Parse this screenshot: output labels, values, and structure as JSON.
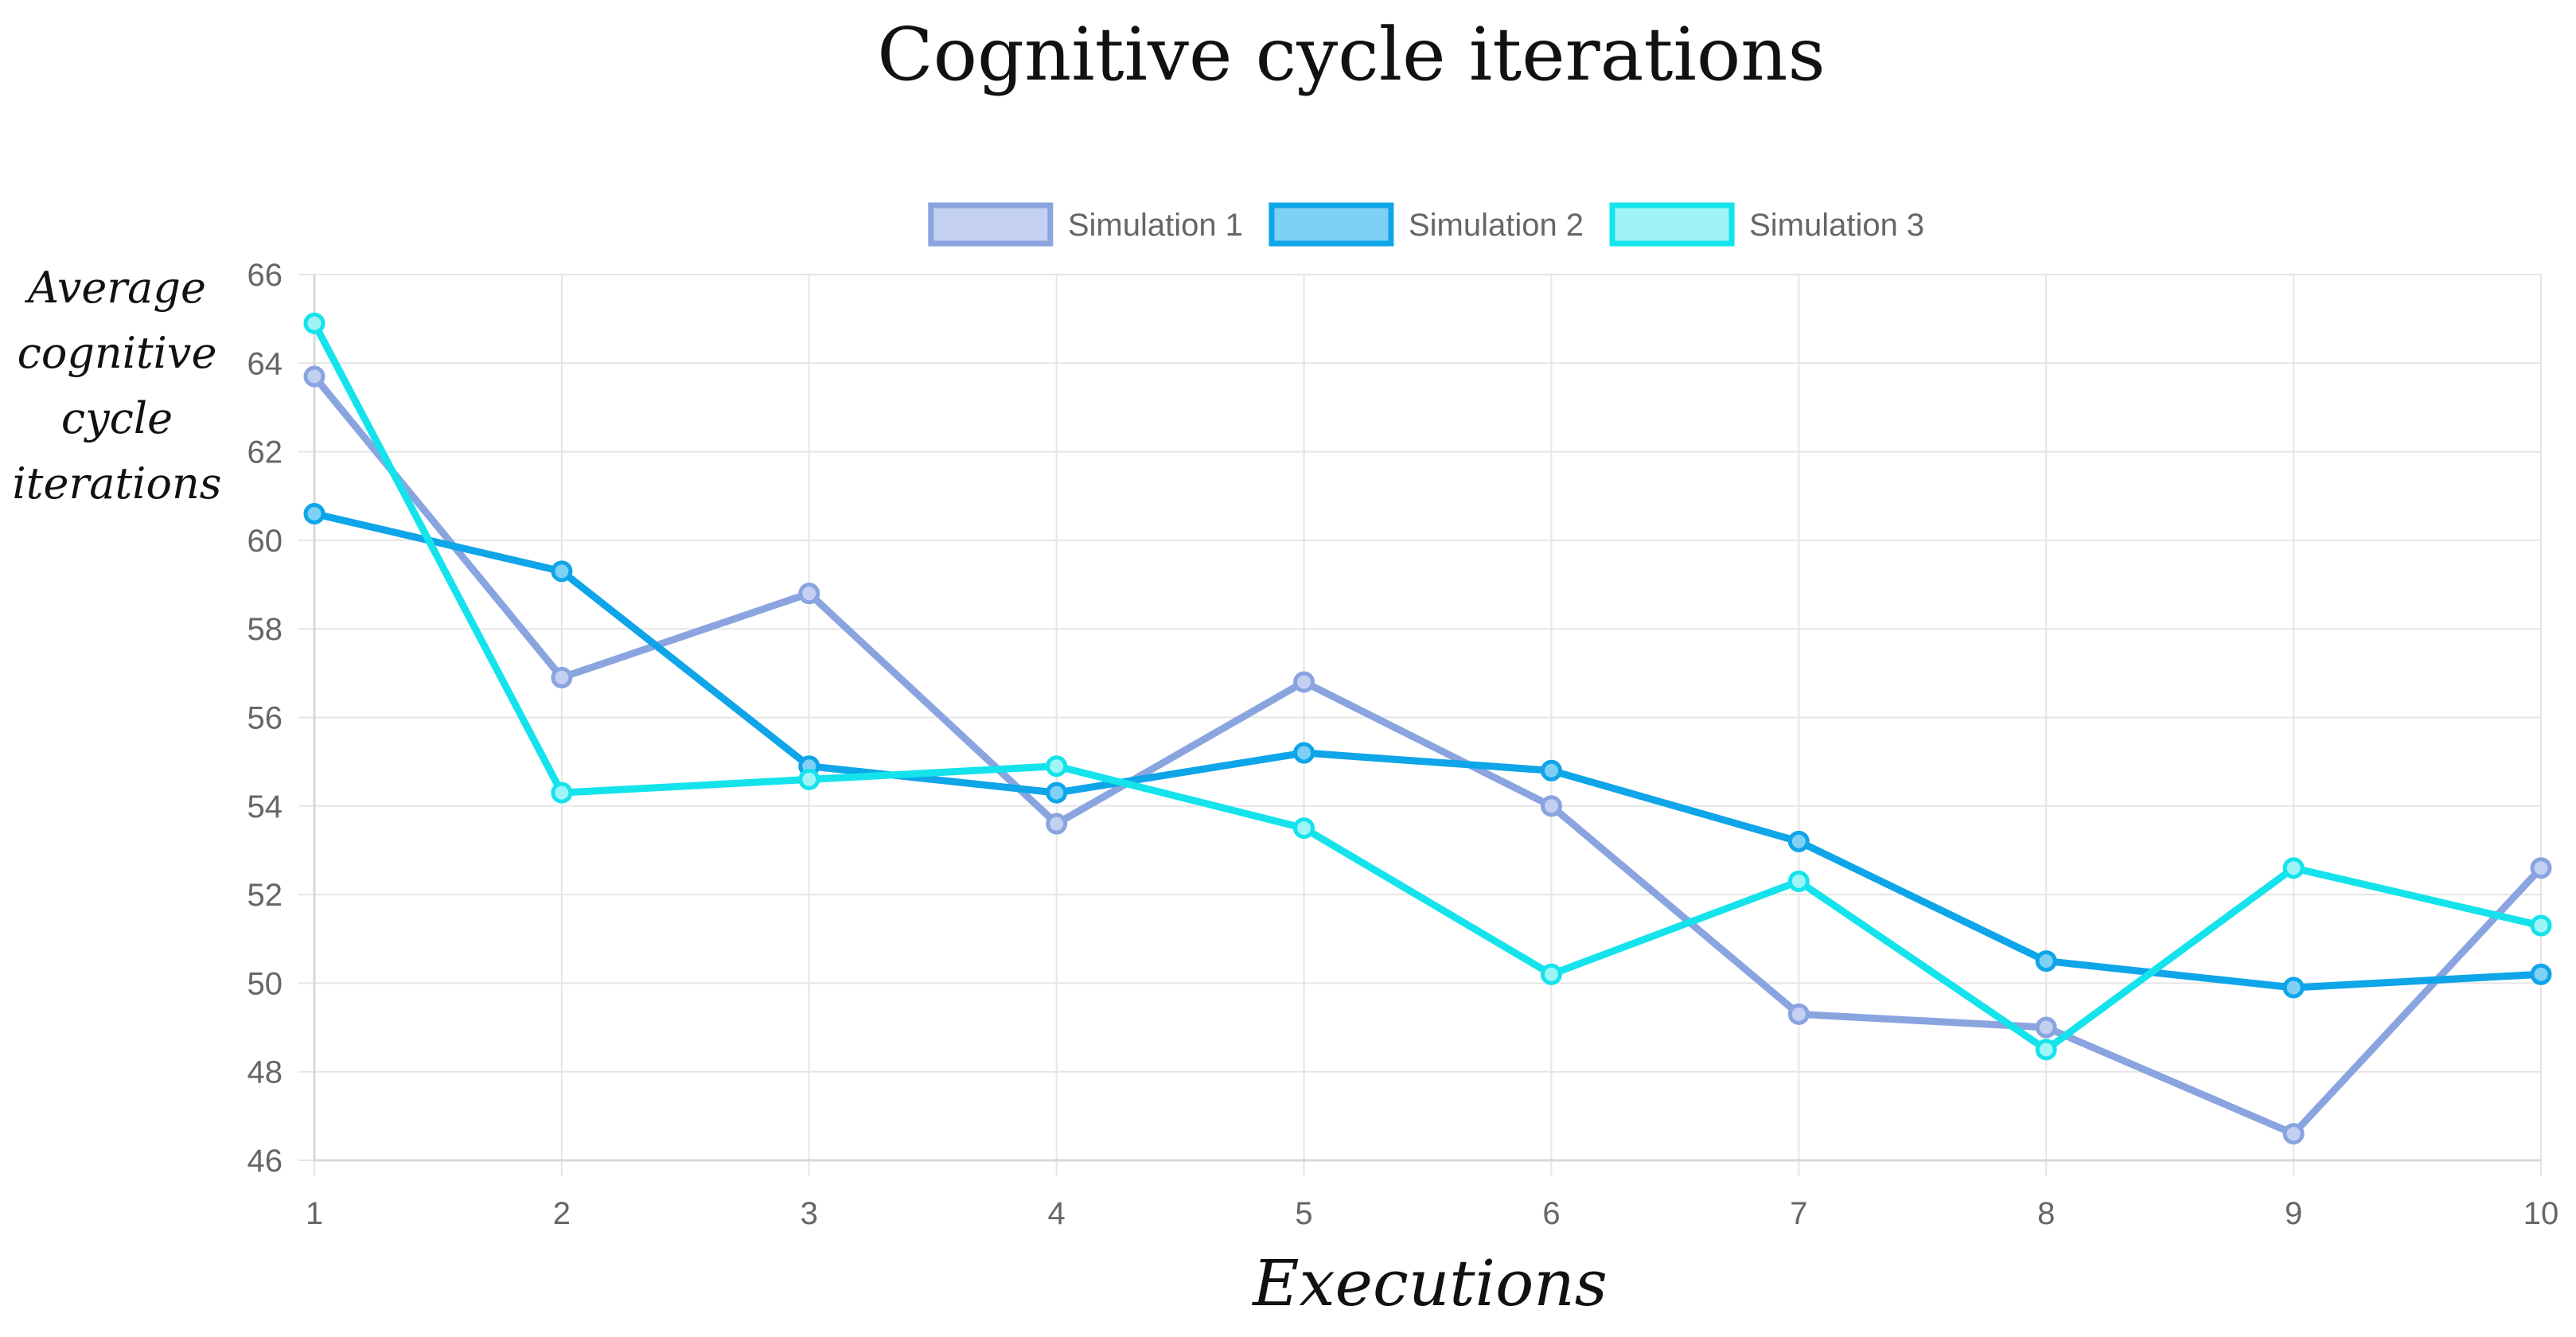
{
  "chart_data": {
    "type": "line",
    "title": "Cognitive cycle iterations",
    "xlabel": "Executions",
    "ylabel_lines": [
      "Average",
      "cognitive",
      "cycle",
      "iterations"
    ],
    "categories": [
      "1",
      "2",
      "3",
      "4",
      "5",
      "6",
      "7",
      "8",
      "9",
      "10"
    ],
    "ylim": [
      46,
      66
    ],
    "yticks": [
      "46",
      "48",
      "50",
      "52",
      "54",
      "56",
      "58",
      "60",
      "62",
      "64",
      "66"
    ],
    "grid": true,
    "legend_position": "top-center",
    "series": [
      {
        "name": "Simulation 1",
        "color": "#8aa4e0",
        "fill": "#c3d0f2",
        "values": [
          63.7,
          56.9,
          58.8,
          53.6,
          56.8,
          54.0,
          49.3,
          49.0,
          46.6,
          52.6
        ]
      },
      {
        "name": "Simulation 2",
        "color": "#0ea5e9",
        "fill": "#7fd0f5",
        "values": [
          60.6,
          59.3,
          54.9,
          54.3,
          55.2,
          54.8,
          53.2,
          50.5,
          49.9,
          50.2
        ]
      },
      {
        "name": "Simulation 3",
        "color": "#14e3ec",
        "fill": "#9ff4f7",
        "values": [
          64.9,
          54.3,
          54.6,
          54.9,
          53.5,
          50.2,
          52.3,
          48.5,
          52.6,
          51.3
        ]
      }
    ]
  }
}
